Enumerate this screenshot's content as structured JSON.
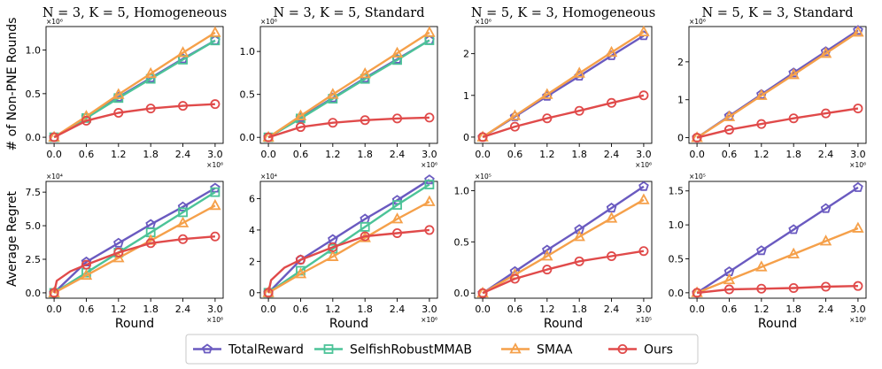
{
  "colors": {
    "TotalReward": "#6a5ac0",
    "SelfishRobustMMAB": "#4cc398",
    "SMAA": "#f5a04a",
    "Ours": "#e04a4a"
  },
  "legend": [
    "TotalReward",
    "SelfishRobustMMAB",
    "SMAA",
    "Ours"
  ],
  "row_labels": [
    "# of Non-PNE Rounds",
    "Average Regret"
  ],
  "chart_data": [
    {
      "type": "line",
      "title": "N = 3, K = 5, Homogeneous",
      "xlabel": "",
      "ylabel": "# of Non-PNE Rounds",
      "x": [
        0.0,
        0.6,
        1.2,
        1.8,
        2.4,
        3.0
      ],
      "xlim": [
        -0.15,
        3.15
      ],
      "xticks": [
        "0.0",
        "0.6",
        "1.2",
        "1.8",
        "2.4",
        "3.0"
      ],
      "xmult": "×10⁶",
      "ylim": [
        -0.07,
        1.27
      ],
      "yticks": [
        0.0,
        0.5,
        1.0
      ],
      "yticklabels": [
        "0.0",
        "0.5",
        "1.0"
      ],
      "ymult": "×10⁶",
      "series": [
        {
          "name": "TotalReward",
          "values": [
            0,
            0.23,
            0.46,
            0.68,
            0.9,
            1.11
          ]
        },
        {
          "name": "SelfishRobustMMAB",
          "values": [
            0,
            0.22,
            0.45,
            0.67,
            0.89,
            1.11
          ]
        },
        {
          "name": "SMAA",
          "values": [
            0,
            0.24,
            0.49,
            0.73,
            0.97,
            1.2
          ]
        },
        {
          "name": "Ours",
          "values": [
            0,
            0.19,
            0.28,
            0.33,
            0.36,
            0.38
          ]
        }
      ]
    },
    {
      "type": "line",
      "title": "N = 3, K = 5, Standard",
      "xlabel": "",
      "ylabel": "",
      "x": [
        0.0,
        0.6,
        1.2,
        1.8,
        2.4,
        3.0
      ],
      "xlim": [
        -0.15,
        3.15
      ],
      "xticks": [
        "0.0",
        "0.6",
        "1.2",
        "1.8",
        "2.4",
        "3.0"
      ],
      "xmult": "×10⁶",
      "ylim": [
        -0.07,
        1.29
      ],
      "yticks": [
        0.0,
        0.5,
        1.0
      ],
      "yticklabels": [
        "0.0",
        "0.5",
        "1.0"
      ],
      "ymult": "×10⁶",
      "series": [
        {
          "name": "TotalReward",
          "values": [
            0,
            0.23,
            0.46,
            0.69,
            0.91,
            1.13
          ]
        },
        {
          "name": "SelfishRobustMMAB",
          "values": [
            0,
            0.22,
            0.45,
            0.68,
            0.9,
            1.13
          ]
        },
        {
          "name": "SMAA",
          "values": [
            0,
            0.25,
            0.5,
            0.74,
            0.98,
            1.22
          ]
        },
        {
          "name": "Ours",
          "values": [
            0,
            0.12,
            0.17,
            0.2,
            0.22,
            0.23
          ]
        }
      ]
    },
    {
      "type": "line",
      "title": "N = 5, K = 3, Homogeneous",
      "xlabel": "",
      "ylabel": "",
      "x": [
        0.0,
        0.6,
        1.2,
        1.8,
        2.4,
        3.0
      ],
      "xlim": [
        -0.15,
        3.15
      ],
      "xticks": [
        "0.0",
        "0.6",
        "1.2",
        "1.8",
        "2.4",
        "3.0"
      ],
      "xmult": "×10⁶",
      "ylim": [
        -0.15,
        2.65
      ],
      "yticks": [
        0,
        1,
        2
      ],
      "yticklabels": [
        "0",
        "1",
        "2"
      ],
      "ymult": "×10⁶",
      "series": [
        {
          "name": "TotalReward",
          "values": [
            0,
            0.49,
            0.98,
            1.46,
            1.95,
            2.43
          ]
        },
        {
          "name": "SMAA",
          "values": [
            0,
            0.51,
            1.02,
            1.53,
            2.03,
            2.52
          ]
        },
        {
          "name": "Ours",
          "values": [
            0,
            0.25,
            0.45,
            0.63,
            0.82,
            1.0
          ]
        }
      ]
    },
    {
      "type": "line",
      "title": "N = 5, K = 3, Standard",
      "xlabel": "",
      "ylabel": "",
      "x": [
        0.0,
        0.6,
        1.2,
        1.8,
        2.4,
        3.0
      ],
      "xlim": [
        -0.15,
        3.15
      ],
      "xticks": [
        "0.0",
        "0.6",
        "1.2",
        "1.8",
        "2.4",
        "3.0"
      ],
      "xmult": "×10⁶",
      "ylim": [
        -0.15,
        2.93
      ],
      "yticks": [
        0,
        1,
        2
      ],
      "yticklabels": [
        "0",
        "1",
        "2"
      ],
      "ymult": "×10⁶",
      "series": [
        {
          "name": "TotalReward",
          "values": [
            0,
            0.57,
            1.14,
            1.71,
            2.27,
            2.83
          ]
        },
        {
          "name": "SMAA",
          "values": [
            0,
            0.55,
            1.11,
            1.66,
            2.22,
            2.78
          ]
        },
        {
          "name": "Ours",
          "values": [
            0,
            0.21,
            0.36,
            0.51,
            0.64,
            0.77
          ]
        }
      ]
    },
    {
      "type": "line",
      "title": "",
      "xlabel": "Round",
      "ylabel": "Average Regret",
      "x": [
        0.0,
        0.6,
        1.2,
        1.8,
        2.4,
        3.0
      ],
      "xlim": [
        -0.15,
        3.15
      ],
      "xticks": [
        "0.0",
        "0.6",
        "1.2",
        "1.8",
        "2.4",
        "3.0"
      ],
      "xmult": "×10⁶",
      "ylim": [
        -0.4,
        8.3
      ],
      "yticks": [
        0.0,
        2.5,
        5.0,
        7.5
      ],
      "yticklabels": [
        "0.0",
        "2.5",
        "5.0",
        "7.5"
      ],
      "ymult": "×10⁴",
      "series": [
        {
          "name": "TotalReward",
          "values": [
            0,
            2.3,
            3.7,
            5.1,
            6.4,
            7.8
          ]
        },
        {
          "name": "SelfishRobustMMAB",
          "values": [
            0,
            1.5,
            3.0,
            4.5,
            6.0,
            7.5
          ]
        },
        {
          "name": "SMAA",
          "values": [
            0,
            1.3,
            2.6,
            3.9,
            5.2,
            6.5
          ]
        },
        {
          "name": "Ours",
          "x": [
            0.0,
            0.05,
            0.3,
            0.6,
            1.2,
            1.8,
            2.4,
            3.0
          ],
          "values": [
            0,
            0.9,
            1.6,
            2.1,
            3.0,
            3.7,
            4.0,
            4.2
          ]
        }
      ]
    },
    {
      "type": "line",
      "title": "",
      "xlabel": "Round",
      "ylabel": "",
      "x": [
        0.0,
        0.6,
        1.2,
        1.8,
        2.4,
        3.0
      ],
      "xlim": [
        -0.15,
        3.15
      ],
      "xticks": [
        "0.0",
        "0.6",
        "1.2",
        "1.8",
        "2.4",
        "3.0"
      ],
      "xmult": "×10⁶",
      "ylim": [
        -0.35,
        7.1
      ],
      "yticks": [
        0,
        2,
        4,
        6
      ],
      "yticklabels": [
        "0",
        "2",
        "4",
        "6"
      ],
      "ymult": "×10⁴",
      "series": [
        {
          "name": "TotalReward",
          "values": [
            0,
            2.1,
            3.4,
            4.7,
            5.9,
            7.2
          ]
        },
        {
          "name": "SelfishRobustMMAB",
          "values": [
            0,
            1.4,
            2.8,
            4.2,
            5.6,
            6.9
          ]
        },
        {
          "name": "SMAA",
          "values": [
            0,
            1.2,
            2.3,
            3.5,
            4.7,
            5.8
          ]
        },
        {
          "name": "Ours",
          "x": [
            0.0,
            0.05,
            0.3,
            0.6,
            1.2,
            1.8,
            2.4,
            3.0
          ],
          "values": [
            0,
            0.8,
            1.6,
            2.1,
            2.9,
            3.6,
            3.8,
            4.0
          ]
        }
      ]
    },
    {
      "type": "line",
      "title": "",
      "xlabel": "Round",
      "ylabel": "",
      "x": [
        0.0,
        0.6,
        1.2,
        1.8,
        2.4,
        3.0
      ],
      "xlim": [
        -0.15,
        3.15
      ],
      "xticks": [
        "0.0",
        "0.6",
        "1.2",
        "1.8",
        "2.4",
        "3.0"
      ],
      "xmult": "×10⁵",
      "ylim": [
        -0.05,
        1.09
      ],
      "yticks": [
        0.0,
        0.5,
        1.0
      ],
      "yticklabels": [
        "0.0",
        "0.5",
        "1.0"
      ],
      "ymult": "×10⁵",
      "series": [
        {
          "name": "TotalReward",
          "values": [
            0,
            0.21,
            0.42,
            0.62,
            0.83,
            1.04
          ]
        },
        {
          "name": "SMAA",
          "values": [
            0,
            0.18,
            0.36,
            0.55,
            0.73,
            0.91
          ]
        },
        {
          "name": "Ours",
          "values": [
            0,
            0.14,
            0.23,
            0.31,
            0.36,
            0.41
          ]
        }
      ]
    },
    {
      "type": "line",
      "title": "",
      "xlabel": "Round",
      "ylabel": "",
      "x": [
        0.0,
        0.6,
        1.2,
        1.8,
        2.4,
        3.0
      ],
      "xlim": [
        -0.15,
        3.15
      ],
      "xticks": [
        "0.0",
        "0.6",
        "1.2",
        "1.8",
        "2.4",
        "3.0"
      ],
      "xmult": "×10⁶",
      "ylim": [
        -0.08,
        1.64
      ],
      "yticks": [
        0.0,
        0.5,
        1.0,
        1.5
      ],
      "yticklabels": [
        "0.0",
        "0.5",
        "1.0",
        "1.5"
      ],
      "ymult": "×10⁵",
      "series": [
        {
          "name": "TotalReward",
          "values": [
            0,
            0.31,
            0.62,
            0.93,
            1.24,
            1.55
          ]
        },
        {
          "name": "SMAA",
          "values": [
            0,
            0.19,
            0.38,
            0.57,
            0.76,
            0.95
          ]
        },
        {
          "name": "Ours",
          "values": [
            0,
            0.05,
            0.06,
            0.07,
            0.09,
            0.1
          ]
        }
      ]
    }
  ]
}
